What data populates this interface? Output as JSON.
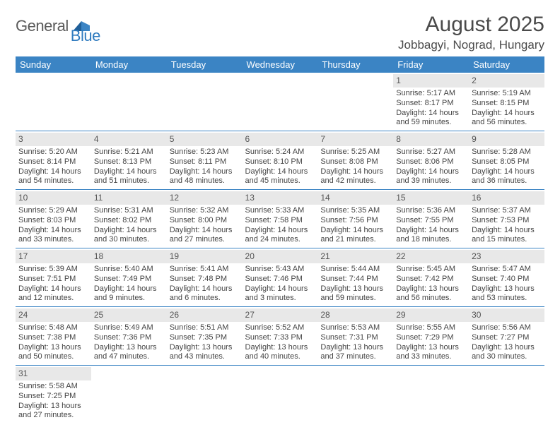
{
  "logo": {
    "general": "General",
    "blue": "Blue"
  },
  "title": "August 2025",
  "location": "Jobbagyi, Nograd, Hungary",
  "weekdays": [
    "Sunday",
    "Monday",
    "Tuesday",
    "Wednesday",
    "Thursday",
    "Friday",
    "Saturday"
  ],
  "colors": {
    "header_bg": "#3b84c4",
    "header_text": "#ffffff",
    "daynum_bg": "#e8e8e8",
    "row_border": "#3b84c4",
    "text": "#444444",
    "title_text": "#4a4a4a",
    "logo_gray": "#5b5b5b",
    "logo_blue": "#2f7bbf"
  },
  "typography": {
    "title_fontsize": 30,
    "location_fontsize": 17,
    "weekday_fontsize": 13,
    "daynum_fontsize": 12,
    "cell_fontsize": 11
  },
  "layout": {
    "columns": 7,
    "rows": 6
  },
  "first_day_column": 5,
  "days": [
    {
      "n": 1,
      "sunrise": "5:17 AM",
      "sunset": "8:17 PM",
      "daylight": "14 hours and 59 minutes."
    },
    {
      "n": 2,
      "sunrise": "5:19 AM",
      "sunset": "8:15 PM",
      "daylight": "14 hours and 56 minutes."
    },
    {
      "n": 3,
      "sunrise": "5:20 AM",
      "sunset": "8:14 PM",
      "daylight": "14 hours and 54 minutes."
    },
    {
      "n": 4,
      "sunrise": "5:21 AM",
      "sunset": "8:13 PM",
      "daylight": "14 hours and 51 minutes."
    },
    {
      "n": 5,
      "sunrise": "5:23 AM",
      "sunset": "8:11 PM",
      "daylight": "14 hours and 48 minutes."
    },
    {
      "n": 6,
      "sunrise": "5:24 AM",
      "sunset": "8:10 PM",
      "daylight": "14 hours and 45 minutes."
    },
    {
      "n": 7,
      "sunrise": "5:25 AM",
      "sunset": "8:08 PM",
      "daylight": "14 hours and 42 minutes."
    },
    {
      "n": 8,
      "sunrise": "5:27 AM",
      "sunset": "8:06 PM",
      "daylight": "14 hours and 39 minutes."
    },
    {
      "n": 9,
      "sunrise": "5:28 AM",
      "sunset": "8:05 PM",
      "daylight": "14 hours and 36 minutes."
    },
    {
      "n": 10,
      "sunrise": "5:29 AM",
      "sunset": "8:03 PM",
      "daylight": "14 hours and 33 minutes."
    },
    {
      "n": 11,
      "sunrise": "5:31 AM",
      "sunset": "8:02 PM",
      "daylight": "14 hours and 30 minutes."
    },
    {
      "n": 12,
      "sunrise": "5:32 AM",
      "sunset": "8:00 PM",
      "daylight": "14 hours and 27 minutes."
    },
    {
      "n": 13,
      "sunrise": "5:33 AM",
      "sunset": "7:58 PM",
      "daylight": "14 hours and 24 minutes."
    },
    {
      "n": 14,
      "sunrise": "5:35 AM",
      "sunset": "7:56 PM",
      "daylight": "14 hours and 21 minutes."
    },
    {
      "n": 15,
      "sunrise": "5:36 AM",
      "sunset": "7:55 PM",
      "daylight": "14 hours and 18 minutes."
    },
    {
      "n": 16,
      "sunrise": "5:37 AM",
      "sunset": "7:53 PM",
      "daylight": "14 hours and 15 minutes."
    },
    {
      "n": 17,
      "sunrise": "5:39 AM",
      "sunset": "7:51 PM",
      "daylight": "14 hours and 12 minutes."
    },
    {
      "n": 18,
      "sunrise": "5:40 AM",
      "sunset": "7:49 PM",
      "daylight": "14 hours and 9 minutes."
    },
    {
      "n": 19,
      "sunrise": "5:41 AM",
      "sunset": "7:48 PM",
      "daylight": "14 hours and 6 minutes."
    },
    {
      "n": 20,
      "sunrise": "5:43 AM",
      "sunset": "7:46 PM",
      "daylight": "14 hours and 3 minutes."
    },
    {
      "n": 21,
      "sunrise": "5:44 AM",
      "sunset": "7:44 PM",
      "daylight": "13 hours and 59 minutes."
    },
    {
      "n": 22,
      "sunrise": "5:45 AM",
      "sunset": "7:42 PM",
      "daylight": "13 hours and 56 minutes."
    },
    {
      "n": 23,
      "sunrise": "5:47 AM",
      "sunset": "7:40 PM",
      "daylight": "13 hours and 53 minutes."
    },
    {
      "n": 24,
      "sunrise": "5:48 AM",
      "sunset": "7:38 PM",
      "daylight": "13 hours and 50 minutes."
    },
    {
      "n": 25,
      "sunrise": "5:49 AM",
      "sunset": "7:36 PM",
      "daylight": "13 hours and 47 minutes."
    },
    {
      "n": 26,
      "sunrise": "5:51 AM",
      "sunset": "7:35 PM",
      "daylight": "13 hours and 43 minutes."
    },
    {
      "n": 27,
      "sunrise": "5:52 AM",
      "sunset": "7:33 PM",
      "daylight": "13 hours and 40 minutes."
    },
    {
      "n": 28,
      "sunrise": "5:53 AM",
      "sunset": "7:31 PM",
      "daylight": "13 hours and 37 minutes."
    },
    {
      "n": 29,
      "sunrise": "5:55 AM",
      "sunset": "7:29 PM",
      "daylight": "13 hours and 33 minutes."
    },
    {
      "n": 30,
      "sunrise": "5:56 AM",
      "sunset": "7:27 PM",
      "daylight": "13 hours and 30 minutes."
    },
    {
      "n": 31,
      "sunrise": "5:58 AM",
      "sunset": "7:25 PM",
      "daylight": "13 hours and 27 minutes."
    }
  ],
  "labels": {
    "sunrise": "Sunrise: ",
    "sunset": "Sunset: ",
    "daylight": "Daylight: "
  }
}
